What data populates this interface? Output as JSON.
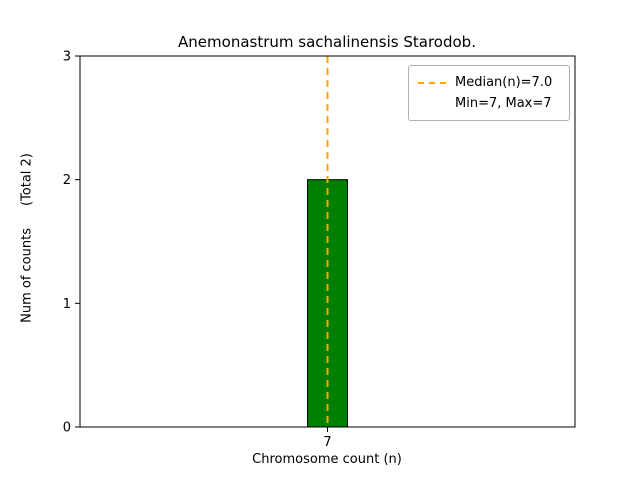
{
  "chart_data": {
    "type": "bar",
    "title": "Anemonastrum sachalinensis Starodob.",
    "xlabel": "Chromosome count (n)",
    "ylabel": "Num of counts",
    "ylabel_suffix": "(Total 2)",
    "categories": [
      "7"
    ],
    "values": [
      2
    ],
    "ylim": [
      0,
      3
    ],
    "yticks": [
      "0",
      "1",
      "2",
      "3"
    ],
    "bar_color": "#008000",
    "bar_edge_color": "#000000",
    "median_line": {
      "value": 7.0,
      "color": "#FFA500",
      "style": "dashed"
    },
    "stats": {
      "median": 7.0,
      "min": 7,
      "max": 7,
      "total_counts": 2
    },
    "legend": {
      "position": "upper right",
      "entries": [
        {
          "label": "Median(n)=7.0",
          "marker": "dashed-line",
          "color": "#FFA500"
        },
        {
          "label": "Min=7, Max=7",
          "marker": "none",
          "color": ""
        }
      ]
    },
    "grid": false
  }
}
